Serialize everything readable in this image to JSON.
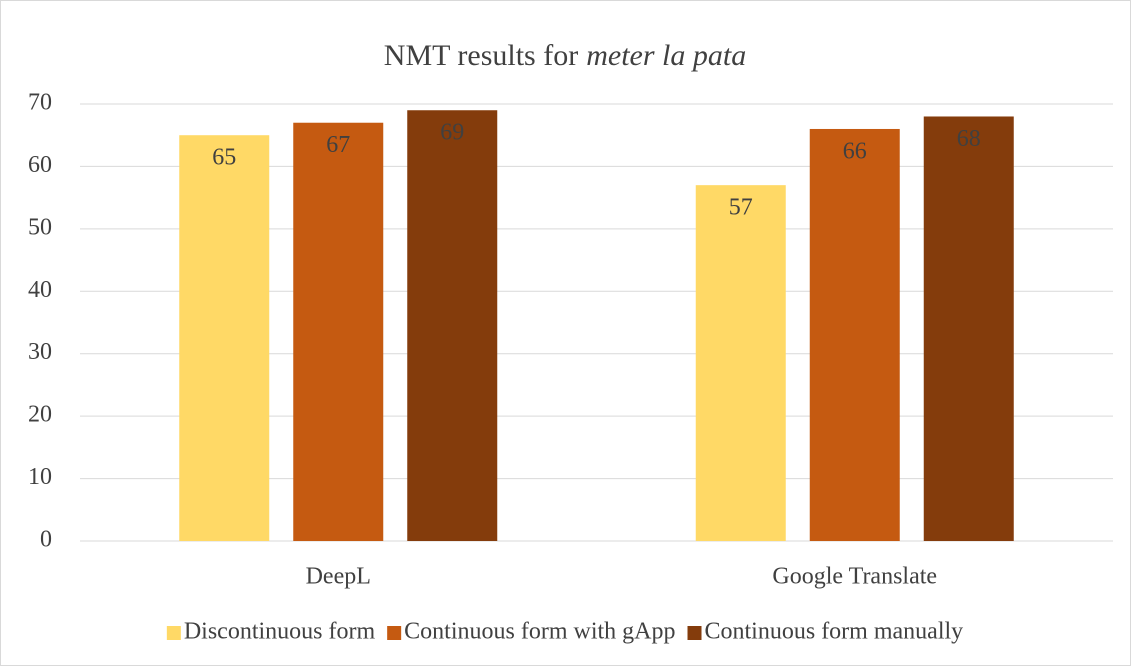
{
  "chart_data": {
    "type": "bar",
    "title": [
      "NMT results for",
      "meter la pata"
    ],
    "categories": [
      "DeepL",
      "Google Translate"
    ],
    "series": [
      {
        "name": "Discontinuous form",
        "color": "#FFD966",
        "values": [
          65,
          57
        ]
      },
      {
        "name": "Continuous form with gApp",
        "color": "#C55A11",
        "values": [
          67,
          66
        ]
      },
      {
        "name": "Continuous form manually",
        "color": "#843C0C",
        "values": [
          69,
          68
        ]
      }
    ],
    "ylim": [
      0,
      70
    ],
    "yticks": [
      0,
      10,
      20,
      30,
      40,
      50,
      60,
      70
    ],
    "grid": true,
    "legend": "bottom"
  }
}
